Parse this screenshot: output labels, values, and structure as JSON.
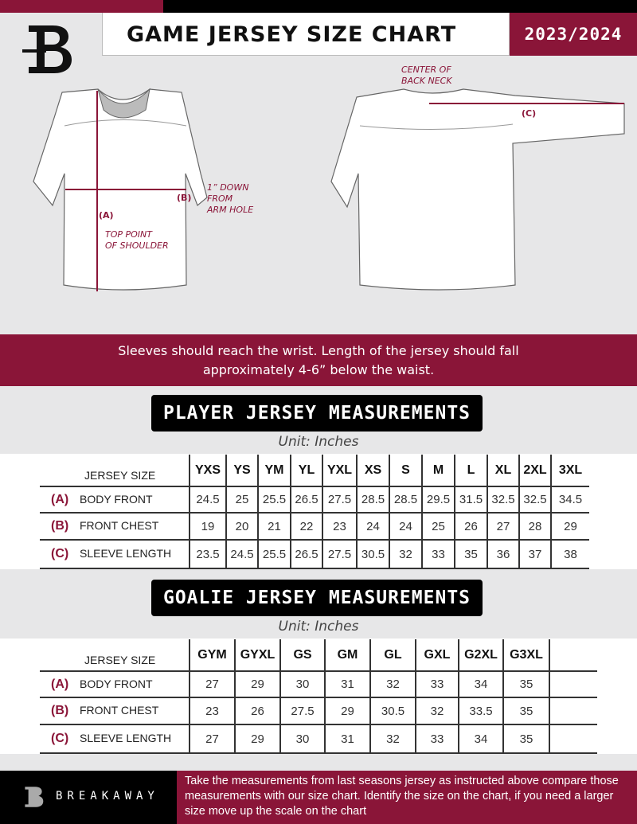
{
  "header": {
    "title": "GAME JERSEY SIZE CHART",
    "season": "2023/2024"
  },
  "diagram": {
    "front_labels": {
      "a": "(A)",
      "b": "(B)",
      "top_point": "TOP POINT\nOF SHOULDER",
      "down": "1” DOWN\nFROM\nARM HOLE"
    },
    "back_labels": {
      "c": "(C)",
      "center": "CENTER OF\nBACK NECK"
    }
  },
  "instruction": "Sleeves should reach the wrist. Length of the jersey should fall approximately 4-6” below the waist.",
  "player": {
    "title": "PLAYER JERSEY MEASUREMENTS",
    "unit": "Unit: Inches",
    "size_header": "JERSEY SIZE",
    "sizes": [
      "YXS",
      "YS",
      "YM",
      "YL",
      "YXL",
      "XS",
      "S",
      "M",
      "L",
      "XL",
      "2XL",
      "3XL"
    ],
    "rows": [
      {
        "letter": "(A)",
        "label": "BODY FRONT",
        "values": [
          "24.5",
          "25",
          "25.5",
          "26.5",
          "27.5",
          "28.5",
          "28.5",
          "29.5",
          "31.5",
          "32.5",
          "32.5",
          "34.5"
        ]
      },
      {
        "letter": "(B)",
        "label": "FRONT CHEST",
        "values": [
          "19",
          "20",
          "21",
          "22",
          "23",
          "24",
          "24",
          "25",
          "26",
          "27",
          "28",
          "29"
        ]
      },
      {
        "letter": "(C)",
        "label": "SLEEVE LENGTH",
        "values": [
          "23.5",
          "24.5",
          "25.5",
          "26.5",
          "27.5",
          "30.5",
          "32",
          "33",
          "35",
          "36",
          "37",
          "38"
        ]
      }
    ]
  },
  "goalie": {
    "title": "GOALIE JERSEY MEASUREMENTS",
    "unit": "Unit: Inches",
    "size_header": "JERSEY SIZE",
    "sizes": [
      "GYM",
      "GYXL",
      "GS",
      "GM",
      "GL",
      "GXL",
      "G2XL",
      "G3XL",
      ""
    ],
    "rows": [
      {
        "letter": "(A)",
        "label": "BODY FRONT",
        "values": [
          "27",
          "29",
          "30",
          "31",
          "32",
          "33",
          "34",
          "35",
          ""
        ]
      },
      {
        "letter": "(B)",
        "label": "FRONT CHEST",
        "values": [
          "23",
          "26",
          "27.5",
          "29",
          "30.5",
          "32",
          "33.5",
          "35",
          ""
        ]
      },
      {
        "letter": "(C)",
        "label": "SLEEVE LENGTH",
        "values": [
          "27",
          "29",
          "30",
          "31",
          "32",
          "33",
          "34",
          "35",
          ""
        ]
      }
    ]
  },
  "footer": {
    "brand": "BREAKAWAY",
    "text": "Take the measurements from last seasons jersey as instructed above compare those measurements  with our size chart. Identify the size on the chart, if you need a larger size move up the scale on the chart"
  },
  "colors": {
    "accent": "#8a1538",
    "background": "#e7e7e8",
    "dark": "#000000"
  }
}
